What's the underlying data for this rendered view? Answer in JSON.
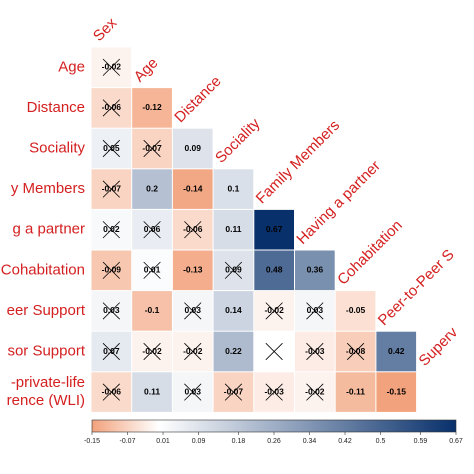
{
  "chart_data": {
    "type": "heatmap",
    "rows": [
      "Age",
      "Distance",
      "Sociality",
      "y Members",
      "g a partner",
      "Cohabitation",
      "eer Support",
      "sor Support",
      [
        "-private-life",
        "rence (WLI)"
      ]
    ],
    "columns": [
      "Sex",
      "Age",
      "Distance",
      "Sociality",
      "Family Members",
      "Having a partner",
      "Cohabitation",
      "Peer-to-Peer S",
      "Superv"
    ],
    "values": [
      [
        -0.02
      ],
      [
        -0.06,
        -0.12
      ],
      [
        0.05,
        -0.07,
        0.09
      ],
      [
        -0.07,
        0.2,
        -0.14,
        0.1
      ],
      [
        0.02,
        0.06,
        -0.06,
        0.11,
        0.67
      ],
      [
        -0.09,
        0.01,
        -0.13,
        0.09,
        0.48,
        0.36
      ],
      [
        0.03,
        -0.1,
        0.03,
        0.14,
        -0.02,
        0.03,
        -0.05
      ],
      [
        0.07,
        -0.02,
        -0.02,
        0.22,
        null,
        -0.03,
        -0.08,
        0.42
      ],
      [
        -0.06,
        0.11,
        0.03,
        -0.07,
        -0.03,
        -0.02,
        -0.11,
        -0.15
      ]
    ],
    "crossed": [
      [
        true
      ],
      [
        true,
        false
      ],
      [
        true,
        true,
        false
      ],
      [
        true,
        false,
        false,
        false
      ],
      [
        true,
        true,
        true,
        false,
        false
      ],
      [
        true,
        true,
        false,
        true,
        false,
        false
      ],
      [
        true,
        false,
        true,
        false,
        true,
        true,
        false
      ],
      [
        true,
        true,
        true,
        false,
        true,
        true,
        true,
        false
      ],
      [
        true,
        false,
        true,
        true,
        true,
        true,
        false,
        false
      ]
    ],
    "colors": {
      "low": "#f2a27c",
      "mid": "#ffffff",
      "high": "#08306b"
    },
    "label_color": "#d42020",
    "clim": [
      -0.15,
      0.67
    ],
    "cticks": [
      -0.15,
      -0.07,
      0.01,
      0.09,
      0.18,
      0.26,
      0.34,
      0.42,
      0.5,
      0.59,
      0.67
    ]
  }
}
